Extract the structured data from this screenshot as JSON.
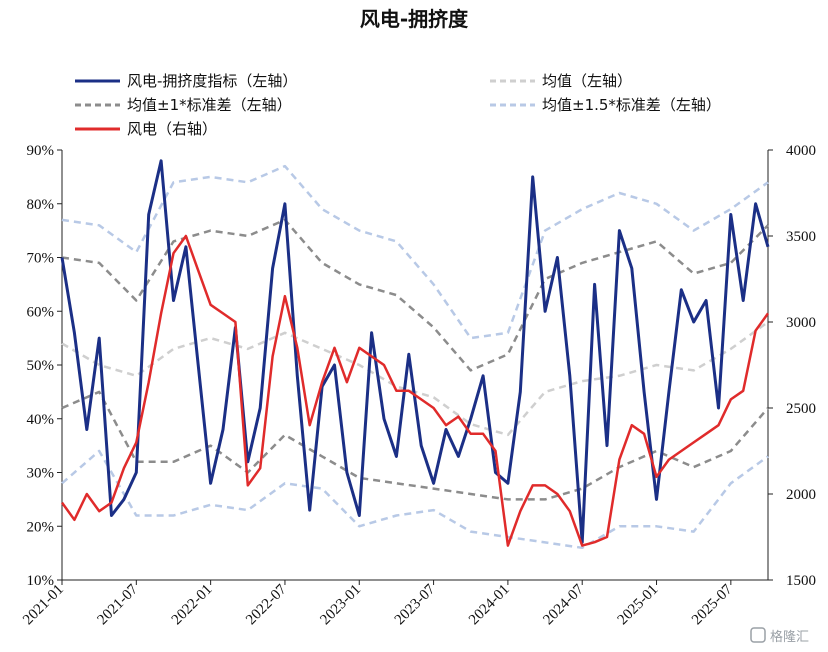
{
  "chart_data": {
    "type": "line",
    "title": "风电-拥挤度",
    "x_ticks": [
      "2021-01",
      "2021-07",
      "2022-01",
      "2022-07",
      "2023-01",
      "2023-07",
      "2024-01",
      "2024-07",
      "2025-01",
      "2025-07"
    ],
    "y_left_ticks": [
      "10%",
      "20%",
      "30%",
      "40%",
      "50%",
      "60%",
      "70%",
      "80%",
      "90%"
    ],
    "y_right_ticks": [
      "1500",
      "2000",
      "2500",
      "3000",
      "3500",
      "4000"
    ],
    "ylim_left": [
      10,
      90
    ],
    "ylim_right": [
      1500,
      4000
    ],
    "xlim": [
      "2021-01",
      "2025-10"
    ],
    "legend_position": "top",
    "colors": {
      "crowding": "#1b2f86",
      "mean": "#cfcfcf",
      "band1": "#8c8c8c",
      "band15": "#b8c9e6",
      "wind": "#e02b2b"
    },
    "series": [
      {
        "name": "风电-拥挤度指标（左轴）",
        "axis": "left",
        "x": [
          "2021-01",
          "2021-02",
          "2021-03",
          "2021-04",
          "2021-05",
          "2021-06",
          "2021-07",
          "2021-08",
          "2021-09",
          "2021-10",
          "2021-11",
          "2021-12",
          "2022-01",
          "2022-02",
          "2022-03",
          "2022-04",
          "2022-05",
          "2022-06",
          "2022-07",
          "2022-08",
          "2022-09",
          "2022-10",
          "2022-11",
          "2022-12",
          "2023-01",
          "2023-02",
          "2023-03",
          "2023-04",
          "2023-05",
          "2023-06",
          "2023-07",
          "2023-08",
          "2023-09",
          "2023-10",
          "2023-11",
          "2023-12",
          "2024-01",
          "2024-02",
          "2024-03",
          "2024-04",
          "2024-05",
          "2024-06",
          "2024-07",
          "2024-08",
          "2024-09",
          "2024-10",
          "2024-11",
          "2024-12",
          "2025-01",
          "2025-02",
          "2025-03",
          "2025-04",
          "2025-05",
          "2025-06",
          "2025-07",
          "2025-08",
          "2025-09",
          "2025-10"
        ],
        "values": [
          70,
          56,
          38,
          55,
          22,
          25,
          30,
          78,
          88,
          62,
          72,
          50,
          28,
          38,
          57,
          32,
          42,
          68,
          80,
          48,
          23,
          46,
          50,
          30,
          22,
          56,
          40,
          33,
          52,
          35,
          28,
          38,
          33,
          40,
          48,
          30,
          28,
          45,
          85,
          60,
          70,
          48,
          17,
          65,
          35,
          75,
          68,
          45,
          25,
          45,
          64,
          58,
          62,
          42,
          78,
          62,
          80,
          72
        ]
      },
      {
        "name": "均值（左轴）",
        "axis": "left",
        "x": [
          "2021-01",
          "2021-04",
          "2021-07",
          "2021-10",
          "2022-01",
          "2022-04",
          "2022-07",
          "2022-10",
          "2023-01",
          "2023-04",
          "2023-07",
          "2023-10",
          "2024-01",
          "2024-04",
          "2024-07",
          "2024-10",
          "2025-01",
          "2025-04",
          "2025-07",
          "2025-10"
        ],
        "values": [
          54,
          50,
          48,
          53,
          55,
          53,
          56,
          53,
          50,
          46,
          44,
          39,
          37,
          45,
          47,
          48,
          50,
          49,
          53,
          58
        ]
      },
      {
        "name": "均值±1*标准差（左轴）",
        "axis": "left",
        "x": [
          "2021-01",
          "2021-04",
          "2021-07",
          "2021-10",
          "2022-01",
          "2022-04",
          "2022-07",
          "2022-10",
          "2023-01",
          "2023-04",
          "2023-07",
          "2023-10",
          "2024-01",
          "2024-04",
          "2024-07",
          "2024-10",
          "2025-01",
          "2025-04",
          "2025-07",
          "2025-10"
        ],
        "values": [
          70,
          69,
          62,
          73,
          75,
          74,
          77,
          69,
          65,
          63,
          57,
          49,
          52,
          66,
          69,
          71,
          73,
          67,
          69,
          76
        ]
      },
      {
        "name": "均值±1*标准差（左轴）",
        "axis": "left",
        "x": [
          "2021-01",
          "2021-04",
          "2021-07",
          "2021-10",
          "2022-01",
          "2022-04",
          "2022-07",
          "2022-10",
          "2023-01",
          "2023-04",
          "2023-07",
          "2023-10",
          "2024-01",
          "2024-04",
          "2024-07",
          "2024-10",
          "2025-01",
          "2025-04",
          "2025-07",
          "2025-10"
        ],
        "values": [
          42,
          45,
          32,
          32,
          35,
          30,
          37,
          33,
          29,
          28,
          27,
          26,
          25,
          25,
          27,
          31,
          34,
          31,
          34,
          42
        ]
      },
      {
        "name": "均值±1.5*标准差（左轴）",
        "axis": "left",
        "x": [
          "2021-01",
          "2021-04",
          "2021-07",
          "2021-10",
          "2022-01",
          "2022-04",
          "2022-07",
          "2022-10",
          "2023-01",
          "2023-04",
          "2023-07",
          "2023-10",
          "2024-01",
          "2024-04",
          "2024-07",
          "2024-10",
          "2025-01",
          "2025-04",
          "2025-07",
          "2025-10"
        ],
        "values": [
          77,
          76,
          71,
          84,
          85,
          84,
          87,
          79,
          75,
          73,
          65,
          55,
          56,
          75,
          79,
          82,
          80,
          75,
          79,
          84
        ]
      },
      {
        "name": "均值±1.5*标准差（左轴）",
        "axis": "left",
        "x": [
          "2021-01",
          "2021-04",
          "2021-07",
          "2021-10",
          "2022-01",
          "2022-04",
          "2022-07",
          "2022-10",
          "2023-01",
          "2023-04",
          "2023-07",
          "2023-10",
          "2024-01",
          "2024-04",
          "2024-07",
          "2024-10",
          "2025-01",
          "2025-04",
          "2025-07",
          "2025-10"
        ],
        "values": [
          28,
          34,
          22,
          22,
          24,
          23,
          28,
          27,
          20,
          22,
          23,
          19,
          18,
          17,
          16,
          20,
          20,
          19,
          28,
          33
        ]
      },
      {
        "name": "风电（右轴）",
        "axis": "right",
        "x": [
          "2021-01",
          "2021-02",
          "2021-03",
          "2021-04",
          "2021-05",
          "2021-06",
          "2021-07",
          "2021-08",
          "2021-09",
          "2021-10",
          "2021-11",
          "2021-12",
          "2022-01",
          "2022-02",
          "2022-03",
          "2022-04",
          "2022-05",
          "2022-06",
          "2022-07",
          "2022-08",
          "2022-09",
          "2022-10",
          "2022-11",
          "2022-12",
          "2023-01",
          "2023-02",
          "2023-03",
          "2023-04",
          "2023-05",
          "2023-06",
          "2023-07",
          "2023-08",
          "2023-09",
          "2023-10",
          "2023-11",
          "2023-12",
          "2024-01",
          "2024-02",
          "2024-03",
          "2024-04",
          "2024-05",
          "2024-06",
          "2024-07",
          "2024-08",
          "2024-09",
          "2024-10",
          "2024-11",
          "2024-12",
          "2025-01",
          "2025-02",
          "2025-03",
          "2025-04",
          "2025-05",
          "2025-06",
          "2025-07",
          "2025-08",
          "2025-09",
          "2025-10"
        ],
        "values": [
          1950,
          1850,
          2000,
          1900,
          1950,
          2150,
          2300,
          2650,
          3050,
          3400,
          3500,
          3300,
          3100,
          3050,
          3000,
          2050,
          2150,
          2800,
          3150,
          2850,
          2400,
          2650,
          2850,
          2650,
          2850,
          2800,
          2750,
          2600,
          2600,
          2550,
          2500,
          2400,
          2450,
          2350,
          2350,
          2250,
          1700,
          1900,
          2050,
          2050,
          2000,
          1900,
          1700,
          1720,
          1750,
          2200,
          2400,
          2350,
          2100,
          2200,
          2250,
          2300,
          2350,
          2400,
          2550,
          2600,
          2950,
          3050
        ]
      }
    ]
  },
  "legend": [
    {
      "label": "风电-拥挤度指标（左轴）",
      "style": "solid",
      "color": "#1b2f86"
    },
    {
      "label": "均值（左轴）",
      "style": "dashed",
      "color": "#cfcfcf"
    },
    {
      "label": "均值±1*标准差（左轴）",
      "style": "dashed",
      "color": "#8c8c8c"
    },
    {
      "label": "均值±1.5*标准差（左轴）",
      "style": "dashed",
      "color": "#b8c9e6"
    },
    {
      "label": "风电（右轴）",
      "style": "solid",
      "color": "#e02b2b"
    }
  ],
  "watermark": "格隆汇"
}
